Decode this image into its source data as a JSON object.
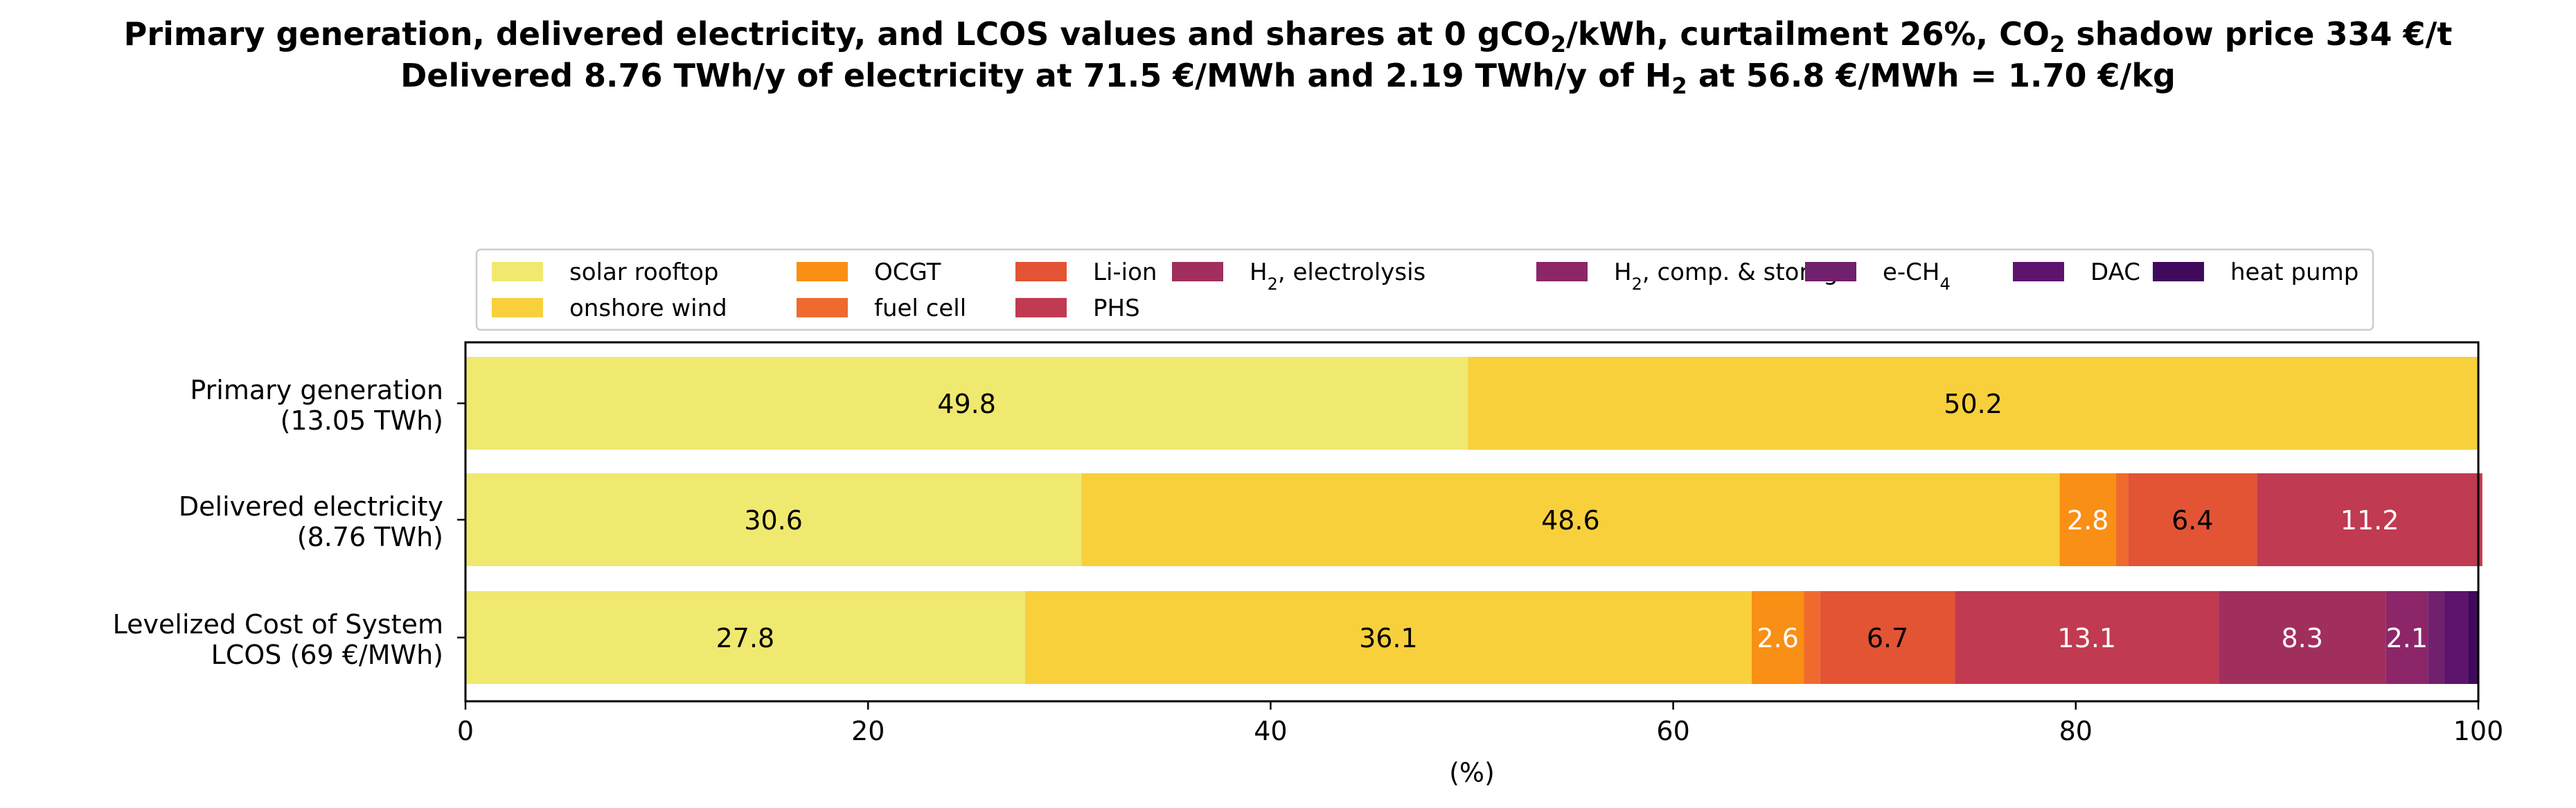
{
  "titles": {
    "line1_a": "Primary generation, delivered electricity, and LCOS values and shares at 0 gCO",
    "line1_b": "2",
    "line1_c": "/kWh, curtailment 26%, CO",
    "line1_d": "2",
    "line1_e": " shadow price 334 €/t",
    "line2_a": "Delivered 8.76 TWh/y of electricity at 71.5 €/MWh and 2.19 TWh/y of H",
    "line2_b": "2",
    "line2_c": " at 56.8 €/MWh = 1.70 €/kg"
  },
  "chart_data": {
    "type": "bar",
    "orientation": "horizontal",
    "stacked": true,
    "xlabel": "(%)",
    "xlim": [
      0,
      100
    ],
    "xticks": [
      0,
      20,
      40,
      60,
      80,
      100
    ],
    "legend_position": "top",
    "categories": [
      [
        "Primary generation",
        "(13.05 TWh)"
      ],
      [
        "Delivered electricity",
        "(8.76 TWh)"
      ],
      [
        "Levelized Cost of System",
        "LCOS  (69 €/MWh)"
      ]
    ],
    "series": [
      {
        "name": "solar rooftop",
        "color": "#f0e970",
        "values": [
          49.8,
          30.6,
          27.8
        ],
        "labels": [
          "49.8",
          "30.6",
          "27.8"
        ],
        "label_color": "#000000"
      },
      {
        "name": "onshore wind",
        "color": "#f7d03c",
        "values": [
          50.2,
          48.6,
          36.1
        ],
        "labels": [
          "50.2",
          "48.6",
          "36.1"
        ],
        "label_color": "#000000"
      },
      {
        "name": "OCGT",
        "color": "#f98f14",
        "values": [
          0,
          2.8,
          2.6
        ],
        "labels": [
          "",
          "2.8",
          "2.6"
        ],
        "label_color": "#ffffff"
      },
      {
        "name": "fuel cell",
        "color": "#ef6a2e",
        "values": [
          0,
          0.6,
          0.8
        ],
        "labels": [
          "",
          "",
          ""
        ],
        "label_color": "#ffffff"
      },
      {
        "name": "Li-ion",
        "color": "#e25434",
        "values": [
          0,
          6.4,
          6.7
        ],
        "labels": [
          "",
          "6.4",
          "6.7"
        ],
        "label_color": "#000000"
      },
      {
        "name": "PHS",
        "color": "#c03a51",
        "values": [
          0,
          11.2,
          13.1
        ],
        "labels": [
          "",
          "11.2",
          "13.1"
        ],
        "label_color": "#ffffff"
      },
      {
        "name": "H₂, electrolysis",
        "name_base": "H",
        "name_sub": "2",
        "name_rest": ", electrolysis",
        "color": "#a12f5d",
        "values": [
          0,
          0,
          8.3
        ],
        "labels": [
          "",
          "",
          "8.3"
        ],
        "label_color": "#ffffff"
      },
      {
        "name": "H₂, comp. & storage",
        "name_base": "H",
        "name_sub": "2",
        "name_rest": ", comp. & storage",
        "color": "#8c2669",
        "values": [
          0,
          0,
          2.1
        ],
        "labels": [
          "",
          "",
          "2.1"
        ],
        "label_color": "#ffffff"
      },
      {
        "name": "e-CH₄",
        "name_base": "e-CH",
        "name_sub": "4",
        "name_rest": "",
        "color": "#71206d",
        "values": [
          0,
          0,
          0.8
        ],
        "labels": [
          "",
          "",
          ""
        ],
        "label_color": "#ffffff"
      },
      {
        "name": "DAC",
        "color": "#5e146d",
        "values": [
          0,
          0,
          1.2
        ],
        "labels": [
          "",
          "",
          ""
        ],
        "label_color": "#ffffff"
      },
      {
        "name": "heat pump",
        "color": "#3f0a5c",
        "values": [
          0,
          0,
          0.5
        ],
        "labels": [
          "",
          "",
          ""
        ],
        "label_color": "#ffffff"
      }
    ]
  }
}
